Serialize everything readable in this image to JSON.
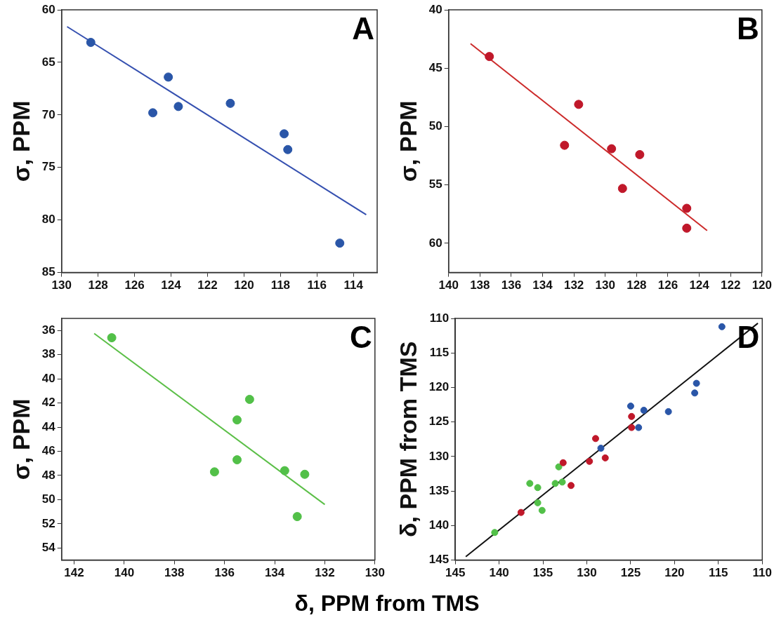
{
  "chart_data": [
    {
      "type": "scatter",
      "ylabel": "σ, PPM",
      "annotations": [
        "A"
      ],
      "grid": false,
      "xlim": [
        130,
        112.7
      ],
      "xticks": [
        130,
        128,
        126,
        124,
        122,
        120,
        118,
        116,
        114
      ],
      "ylim": [
        85,
        60
      ],
      "yticks": [
        60,
        65,
        70,
        75,
        80,
        85
      ],
      "series": [
        {
          "color": "#2a56a8",
          "marker": "circle",
          "x": [
            128.4,
            125.0,
            124.15,
            123.6,
            120.75,
            117.8,
            117.6,
            114.75
          ],
          "values": [
            63.1,
            69.8,
            66.4,
            69.2,
            68.9,
            71.8,
            73.3,
            82.2
          ]
        },
        {
          "type": "line",
          "marker": "none",
          "color": "#3550b0",
          "x": [
            129.7,
            113.3
          ],
          "values": [
            61.6,
            79.5
          ]
        }
      ]
    },
    {
      "type": "scatter",
      "ylabel": "σ, PPM",
      "annotations": [
        "B"
      ],
      "grid": false,
      "xlim": [
        140,
        120
      ],
      "xticks": [
        140,
        138,
        136,
        134,
        132,
        130,
        128,
        126,
        124,
        122,
        120
      ],
      "ylim": [
        62.5,
        40
      ],
      "yticks": [
        40,
        45,
        50,
        55,
        60
      ],
      "series": [
        {
          "color": "#c0182a",
          "marker": "circle",
          "x": [
            137.4,
            132.6,
            131.7,
            129.6,
            128.9,
            127.8,
            124.8,
            124.8
          ],
          "values": [
            44.0,
            51.6,
            48.1,
            51.9,
            55.3,
            52.4,
            57.0,
            58.7
          ]
        },
        {
          "type": "line",
          "marker": "none",
          "color": "#cc2a2a",
          "x": [
            138.6,
            123.5
          ],
          "values": [
            42.9,
            58.9
          ]
        }
      ]
    },
    {
      "type": "scatter",
      "ylabel": "σ, PPM",
      "xlabel": "δ, PPM from TMS",
      "annotations": [
        "C"
      ],
      "grid": false,
      "xlim": [
        142.5,
        130
      ],
      "xticks": [
        142,
        140,
        138,
        136,
        134,
        132,
        130
      ],
      "ylim": [
        55,
        35
      ],
      "yticks": [
        36,
        38,
        40,
        42,
        44,
        46,
        48,
        50,
        52,
        54
      ],
      "series": [
        {
          "color": "#52c048",
          "marker": "circle",
          "x": [
            140.5,
            136.4,
            135.5,
            135.5,
            135.0,
            133.6,
            132.8,
            133.1
          ],
          "values": [
            36.6,
            47.7,
            43.4,
            46.7,
            41.7,
            47.6,
            47.9,
            51.4
          ]
        },
        {
          "type": "line",
          "marker": "none",
          "color": "#5cbf48",
          "x": [
            141.2,
            132.0
          ],
          "values": [
            36.25,
            50.4
          ]
        }
      ]
    },
    {
      "type": "scatter",
      "ylabel": "δ, PPM from TMS",
      "annotations": [
        "D"
      ],
      "grid": false,
      "xlim": [
        145,
        110
      ],
      "xticks": [
        145,
        140,
        135,
        130,
        125,
        120,
        115,
        110
      ],
      "ylim": [
        145,
        110
      ],
      "yticks": [
        110,
        115,
        120,
        125,
        130,
        135,
        140,
        145
      ],
      "series": [
        {
          "color": "#2a56a8",
          "marker": "circle",
          "x": [
            114.6,
            117.5,
            117.7,
            120.7,
            123.5,
            125.0,
            124.1,
            128.4
          ],
          "values": [
            111.2,
            119.4,
            120.8,
            123.5,
            123.3,
            122.7,
            125.8,
            128.8
          ]
        },
        {
          "color": "#c0182a",
          "marker": "circle",
          "x": [
            124.9,
            124.9,
            129.0,
            127.9,
            129.7,
            132.7,
            131.8,
            137.5
          ],
          "values": [
            124.2,
            125.8,
            127.4,
            130.2,
            130.7,
            130.9,
            134.2,
            138.1
          ]
        },
        {
          "color": "#52c048",
          "marker": "circle",
          "x": [
            140.5,
            136.5,
            135.6,
            135.6,
            135.1,
            133.6,
            133.2,
            132.8
          ],
          "values": [
            141.0,
            133.9,
            134.5,
            136.7,
            137.8,
            133.9,
            131.5,
            133.7
          ]
        },
        {
          "type": "line",
          "marker": "none",
          "color": "#111111",
          "x": [
            143.8,
            110.5
          ],
          "values": [
            144.5,
            110.7
          ]
        }
      ]
    }
  ]
}
